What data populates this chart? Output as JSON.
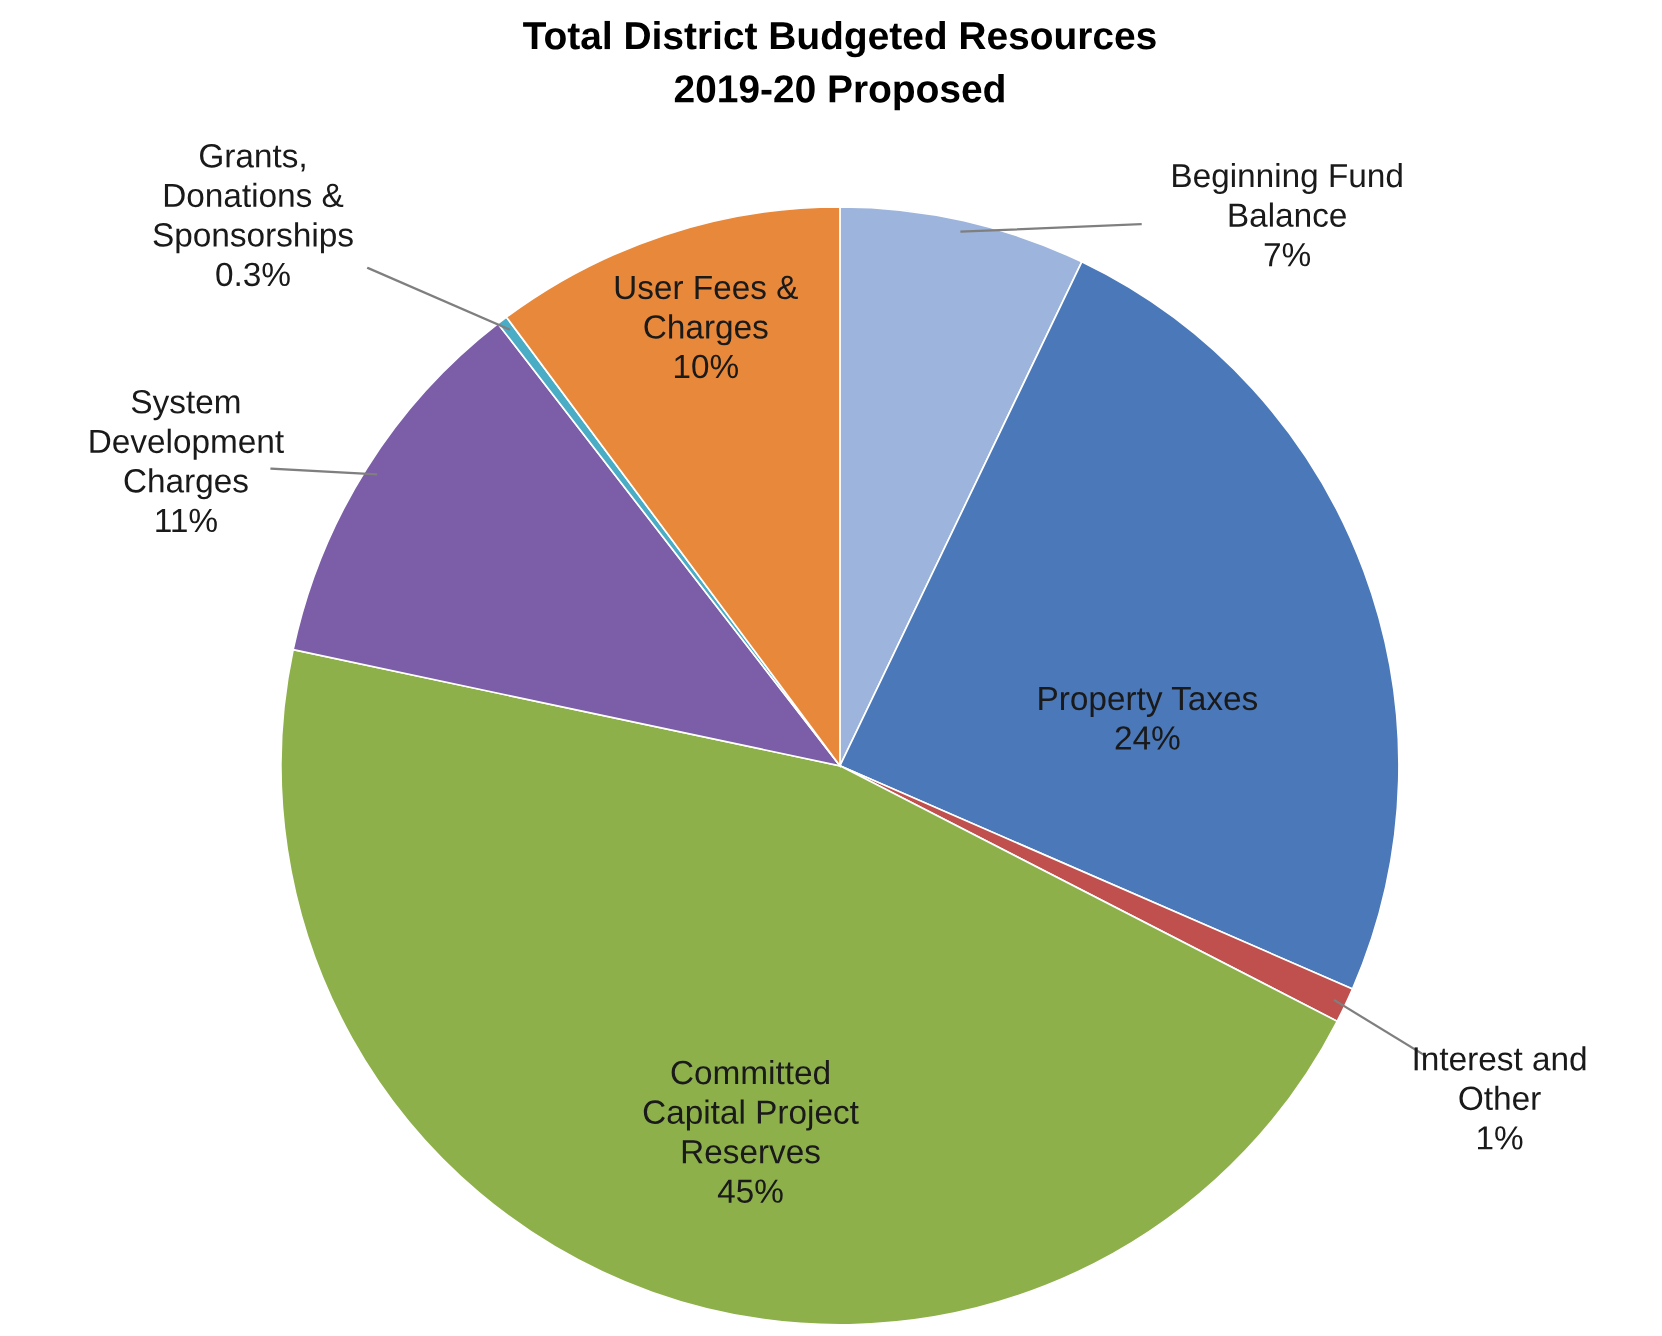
{
  "chart_data": {
    "type": "pie",
    "title": "Total District Budgeted Resources",
    "subtitle": "2019-20 Proposed",
    "categories": [
      "Beginning Fund Balance",
      "Property Taxes",
      "Interest and Other",
      "Committed Capital Project Reserves",
      "System Development Charges",
      "Grants, Donations & Sponsorships",
      "User Fees & Charges"
    ],
    "values": [
      7,
      24,
      1,
      45,
      11,
      0.3,
      10
    ],
    "colors": [
      "#9db4dc",
      "#4a78b8",
      "#c0504d",
      "#8db04a",
      "#7b5ea7",
      "#4bacc6",
      "#e8883a"
    ],
    "value_labels": [
      "7%",
      "24%",
      "1%",
      "45%",
      "11%",
      "0.3%",
      "10%"
    ],
    "legend": false
  }
}
